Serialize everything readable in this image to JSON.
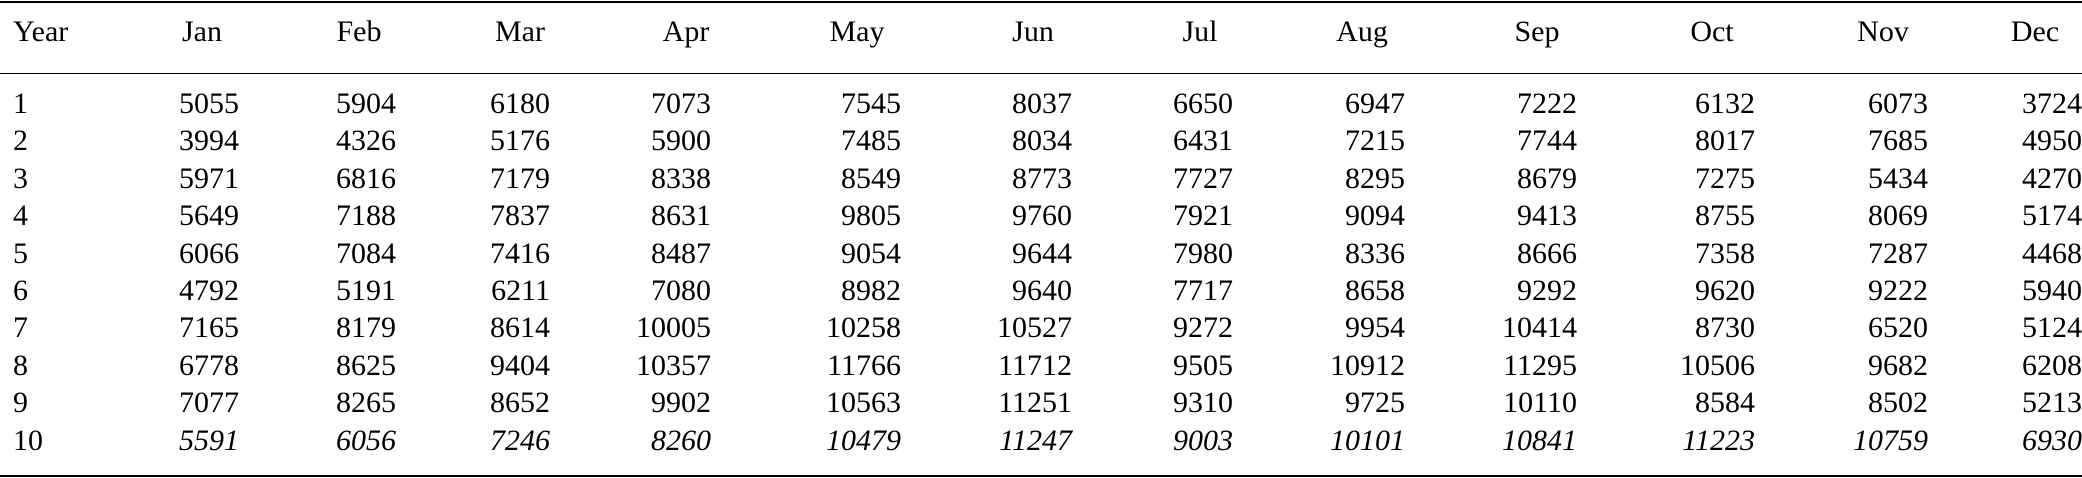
{
  "table": {
    "headers": [
      "Year",
      "Jan",
      "Feb",
      "Mar",
      "Apr",
      "May",
      "Jun",
      "Jul",
      "Aug",
      "Sep",
      "Oct",
      "Nov",
      "Dec"
    ],
    "rows": [
      {
        "year": "1",
        "values": [
          "5055",
          "5904",
          "6180",
          "7073",
          "7545",
          "8037",
          "6650",
          "6947",
          "7222",
          "6132",
          "6073",
          "3724"
        ]
      },
      {
        "year": "2",
        "values": [
          "3994",
          "4326",
          "5176",
          "5900",
          "7485",
          "8034",
          "6431",
          "7215",
          "7744",
          "8017",
          "7685",
          "4950"
        ]
      },
      {
        "year": "3",
        "values": [
          "5971",
          "6816",
          "7179",
          "8338",
          "8549",
          "8773",
          "7727",
          "8295",
          "8679",
          "7275",
          "5434",
          "4270"
        ]
      },
      {
        "year": "4",
        "values": [
          "5649",
          "7188",
          "7837",
          "8631",
          "9805",
          "9760",
          "7921",
          "9094",
          "9413",
          "8755",
          "8069",
          "5174"
        ]
      },
      {
        "year": "5",
        "values": [
          "6066",
          "7084",
          "7416",
          "8487",
          "9054",
          "9644",
          "7980",
          "8336",
          "8666",
          "7358",
          "7287",
          "4468"
        ]
      },
      {
        "year": "6",
        "values": [
          "4792",
          "5191",
          "6211",
          "7080",
          "8982",
          "9640",
          "7717",
          "8658",
          "9292",
          "9620",
          "9222",
          "5940"
        ]
      },
      {
        "year": "7",
        "values": [
          "7165",
          "8179",
          "8614",
          "10005",
          "10258",
          "10527",
          "9272",
          "9954",
          "10414",
          "8730",
          "6520",
          "5124"
        ]
      },
      {
        "year": "8",
        "values": [
          "6778",
          "8625",
          "9404",
          "10357",
          "11766",
          "11712",
          "9505",
          "10912",
          "11295",
          "10506",
          "9682",
          "6208"
        ]
      },
      {
        "year": "9",
        "values": [
          "7077",
          "8265",
          "8652",
          "9902",
          "10563",
          "11251",
          "9310",
          "9725",
          "10110",
          "8584",
          "8502",
          "5213"
        ]
      },
      {
        "year": "10",
        "values": [
          "5591",
          "6056",
          "7246",
          "8260",
          "10479",
          "11247",
          "9003",
          "10101",
          "10841",
          "11223",
          "10759",
          "6930"
        ],
        "italic": true
      }
    ]
  }
}
